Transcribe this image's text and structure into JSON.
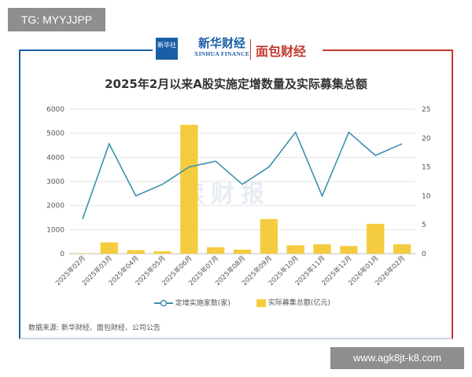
{
  "overlay_tag": "TG: MYYJJPP",
  "overlay_url": "www.agk8jt-k8.com",
  "brand": {
    "xinhua_logo_text": "新华社",
    "xinhua_cn": "新华财经",
    "xinhua_en": "XINHUA FINANCE",
    "mianbao": "面包财经"
  },
  "watermark": "读财报",
  "source_note": "数据来源: 新华财经、面包财经、公司公告",
  "colors": {
    "line": "#3d8fb0",
    "bar": "#f5cc3f",
    "left_frame": "#1a5ea6",
    "right_frame": "#c0392b"
  },
  "chart_data": {
    "type": "bar",
    "title": "2025年2月以来A股实施定增数量及实际募集总额",
    "categories": [
      "2025年02月",
      "2025年03月",
      "2025年04月",
      "2025年05月",
      "2025年06月",
      "2025年07月",
      "2025年08月",
      "2025年09月",
      "2025年10月",
      "2025年11月",
      "2025年12月",
      "2026年01月",
      "2026年02月"
    ],
    "left_axis": {
      "min": 0,
      "max": 6000,
      "ticks": [
        "0",
        "1000",
        "2000",
        "3000",
        "4000",
        "5000",
        "6000"
      ]
    },
    "right_axis": {
      "min": 0,
      "max": 25,
      "ticks": [
        "0",
        "5",
        "10",
        "15",
        "20",
        "25"
      ]
    },
    "grid": true,
    "legend_position": "bottom",
    "series": [
      {
        "name": "定增实施家数(家)",
        "kind": "line",
        "axis": "right",
        "values": [
          6,
          19,
          10,
          12,
          15,
          16,
          12,
          15,
          21,
          10,
          21,
          17,
          19
        ]
      },
      {
        "name": "实际募集总额(亿元)",
        "kind": "bar",
        "axis": "left",
        "values": [
          20,
          470,
          150,
          100,
          5350,
          270,
          170,
          1440,
          350,
          390,
          320,
          1240,
          390
        ]
      }
    ]
  }
}
